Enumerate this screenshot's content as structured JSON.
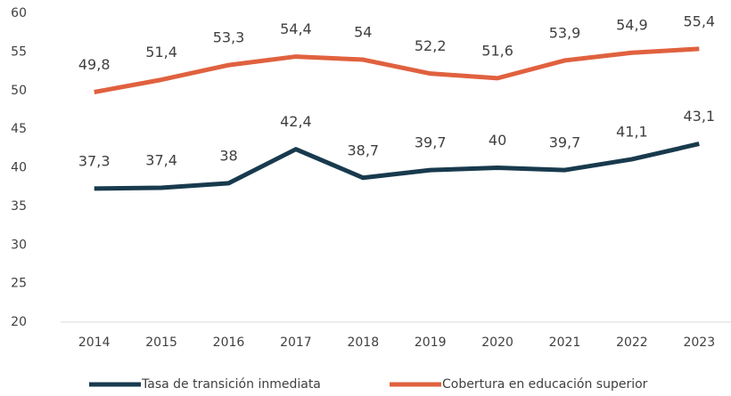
{
  "chart_data": {
    "type": "line",
    "categories": [
      "2014",
      "2015",
      "2016",
      "2017",
      "2018",
      "2019",
      "2020",
      "2021",
      "2022",
      "2023"
    ],
    "series": [
      {
        "name": "Tasa de transición inmediata",
        "color": "#183a4d",
        "values": [
          37.3,
          37.4,
          38,
          42.4,
          38.7,
          39.7,
          40,
          39.7,
          41.1,
          43.1
        ],
        "value_labels": [
          "37,3",
          "37,4",
          "38",
          "42,4",
          "38,7",
          "39,7",
          "40",
          "39,7",
          "41,1",
          "43,1"
        ]
      },
      {
        "name": "Cobertura en educación superior",
        "color": "#e0613f",
        "values": [
          49.8,
          51.4,
          53.3,
          54.4,
          54,
          52.2,
          51.6,
          53.9,
          54.9,
          55.4
        ],
        "value_labels": [
          "49,8",
          "51,4",
          "53,3",
          "54,4",
          "54",
          "52,2",
          "51,6",
          "53,9",
          "54,9",
          "55,4"
        ]
      }
    ],
    "ylim": [
      20,
      60
    ],
    "yticks": [
      20,
      25,
      30,
      35,
      40,
      45,
      50,
      55,
      60
    ],
    "grid": false,
    "legend": "bottom"
  }
}
